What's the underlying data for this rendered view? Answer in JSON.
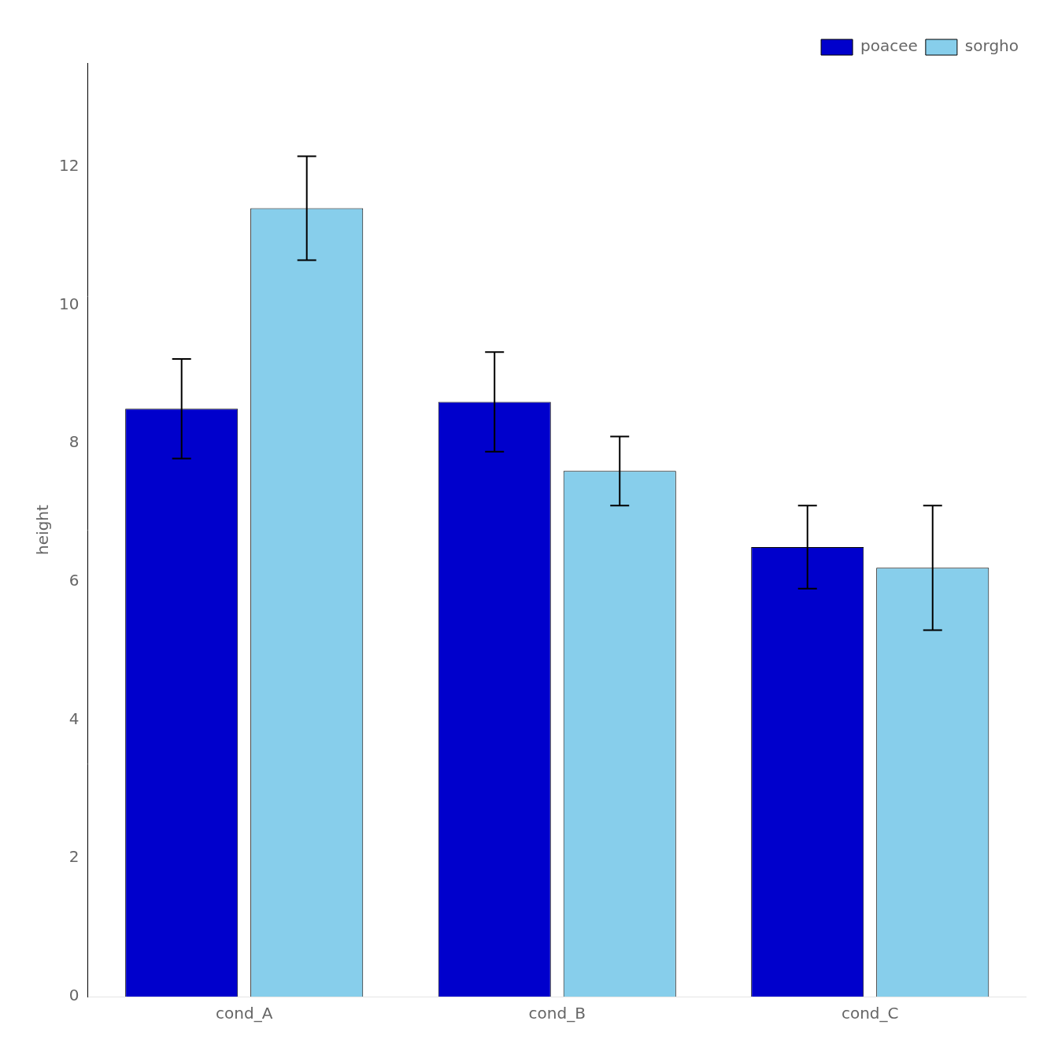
{
  "chart_data": {
    "type": "bar",
    "categories": [
      "cond_A",
      "cond_B",
      "cond_C"
    ],
    "series": [
      {
        "name": "poacee",
        "color": "#0000CC",
        "values": [
          8.5,
          8.6,
          6.5
        ],
        "errors": [
          0.72,
          0.72,
          0.6
        ]
      },
      {
        "name": "sorgho",
        "color": "#87CEEB",
        "values": [
          11.4,
          7.6,
          6.2
        ],
        "errors": [
          0.75,
          0.5,
          0.9
        ]
      }
    ],
    "ylabel": "height",
    "ylim": [
      0,
      13.5
    ],
    "yticks": [
      0,
      2,
      4,
      6,
      8,
      10,
      12
    ],
    "grid": false,
    "legend": "upper right"
  }
}
